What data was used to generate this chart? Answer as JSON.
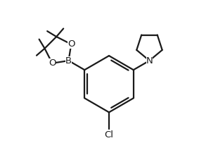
{
  "background_color": "#ffffff",
  "line_color": "#1a1a1a",
  "line_width": 1.6,
  "font_size": 9.5,
  "figsize": [
    3.1,
    2.2
  ],
  "dpi": 100,
  "xlim": [
    0,
    10
  ],
  "ylim": [
    0,
    7
  ]
}
